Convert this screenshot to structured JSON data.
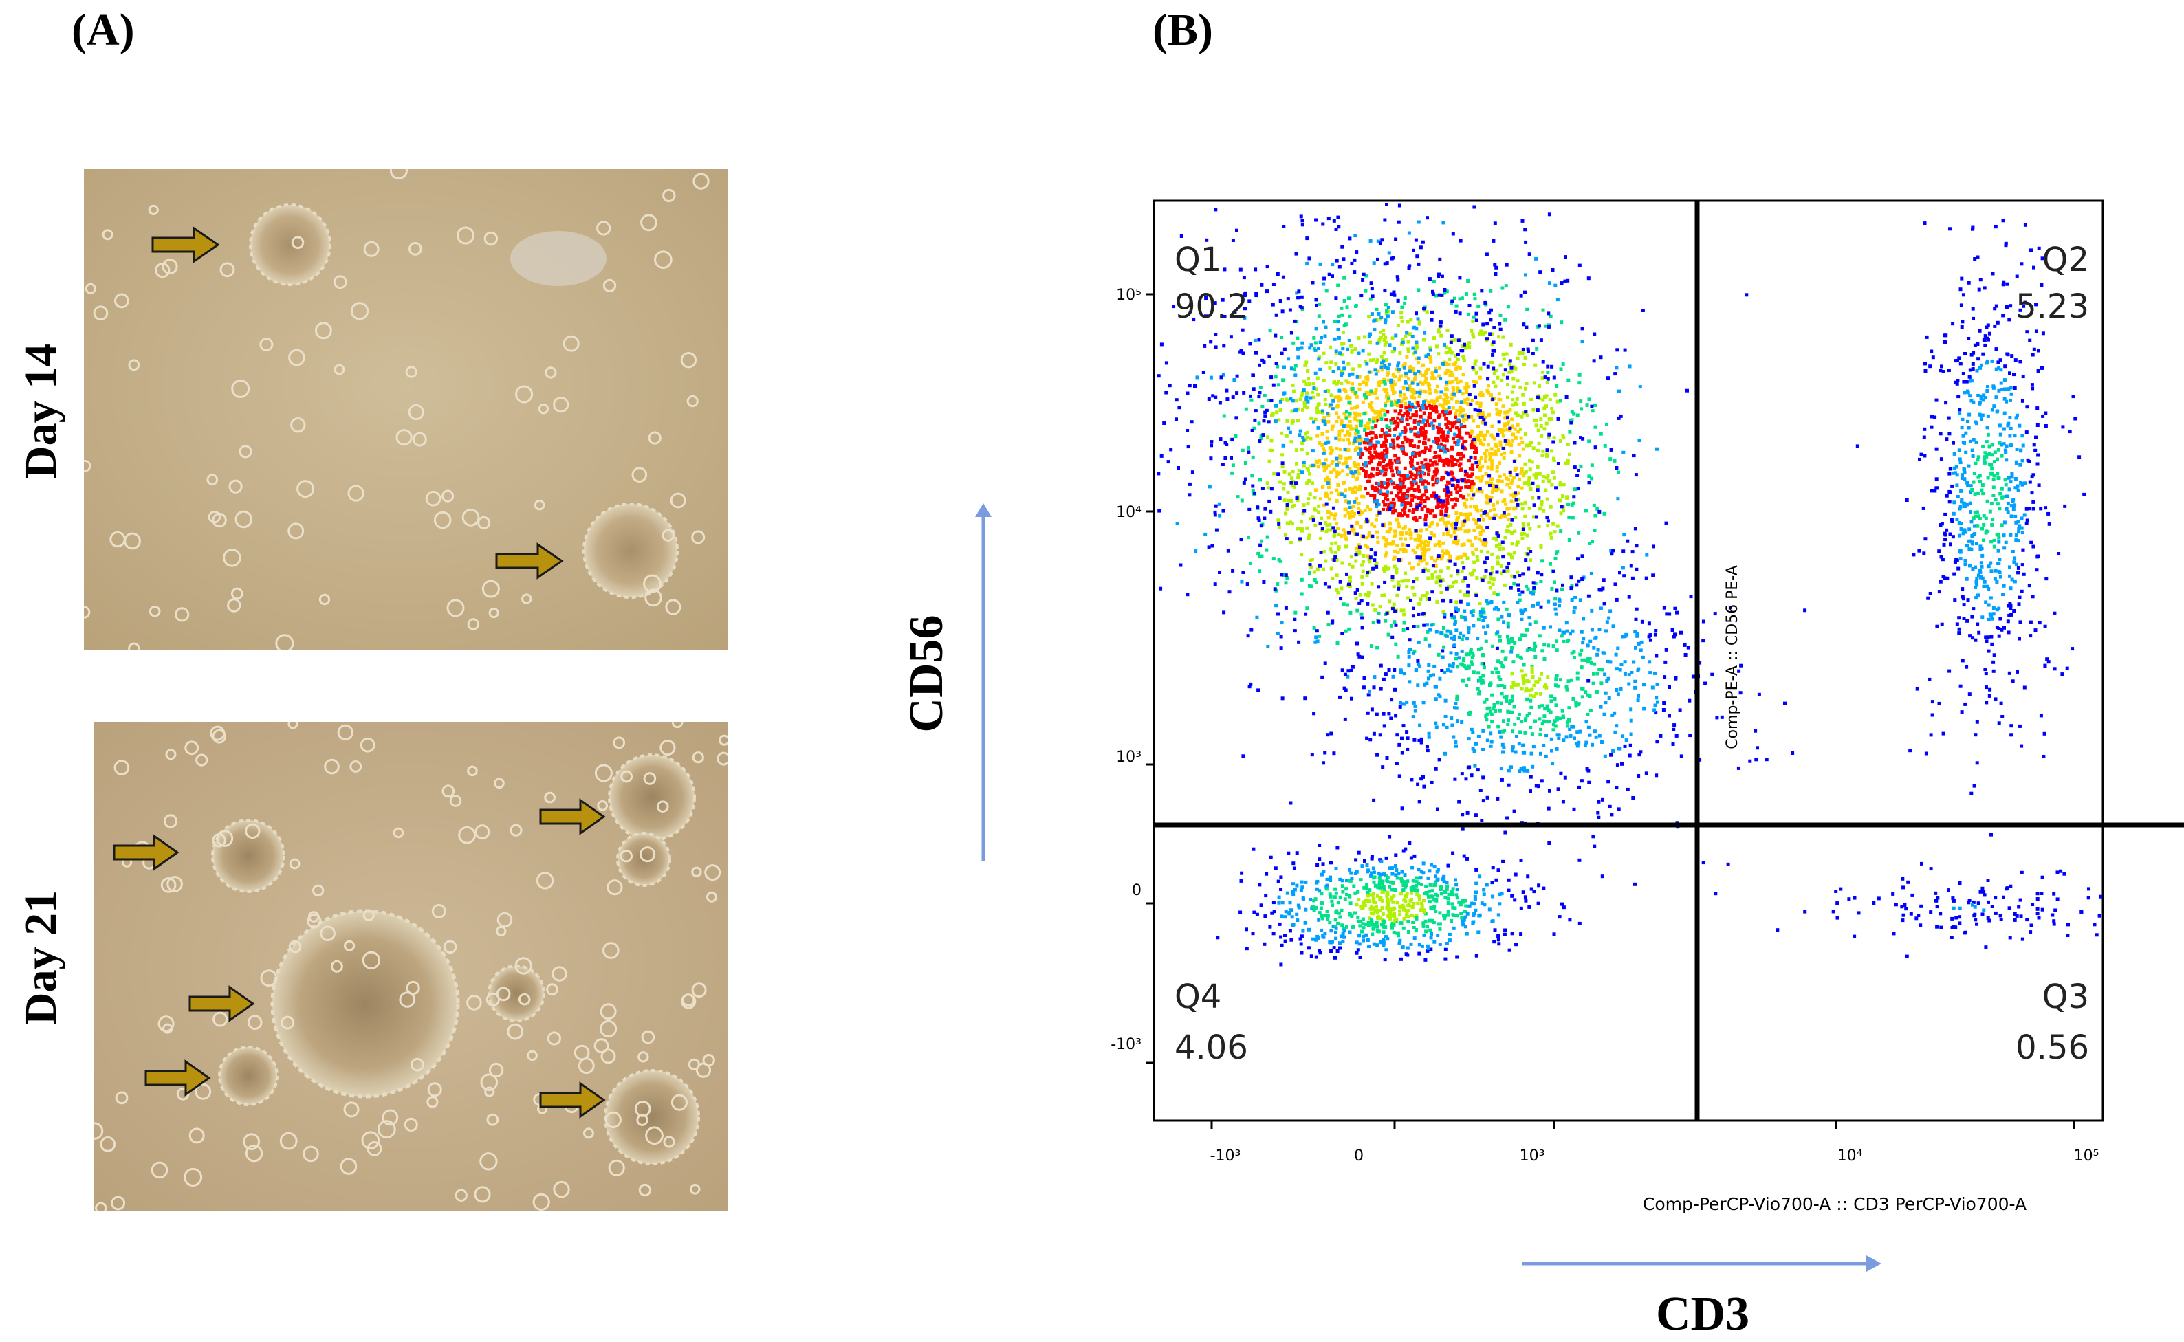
{
  "panels": {
    "a": {
      "label": "(A)",
      "images": [
        {
          "label": "Day 14",
          "arrow_count": 2
        },
        {
          "label": "Day 21",
          "arrow_count": 6
        }
      ]
    },
    "b": {
      "label": "(B)"
    }
  },
  "chart_data": {
    "type": "scatter",
    "title": "",
    "xlabel": "Comp-PerCP-Vio700-A :: CD3 PerCP-Vio700-A",
    "ylabel": "Comp-PE-A :: CD56 PE-A",
    "x_marker_label": "CD3",
    "y_marker_label": "CD56",
    "x_scale": "biexponential",
    "y_scale": "biexponential",
    "x_ticks": [
      "-10³",
      "0",
      "10³",
      "10⁴",
      "10⁵"
    ],
    "y_ticks": [
      "10⁵",
      "10⁴",
      "10³",
      "0",
      "-10³"
    ],
    "quadrants": [
      {
        "name": "Q1",
        "percent": "90.2"
      },
      {
        "name": "Q2",
        "percent": "5.23"
      },
      {
        "name": "Q3",
        "percent": "0.56"
      },
      {
        "name": "Q4",
        "percent": "4.06"
      }
    ],
    "density_colors": [
      "#0000ff",
      "#00a0ff",
      "#00e08a",
      "#b0f000",
      "#ffd000",
      "#ff0000"
    ],
    "grid": false
  },
  "colors": {
    "arrow_fill": "#b8920f",
    "arrow_stroke": "#1a1a1a",
    "micro_background": "#c9b48e",
    "axis_arrow": "#7b9be0"
  }
}
